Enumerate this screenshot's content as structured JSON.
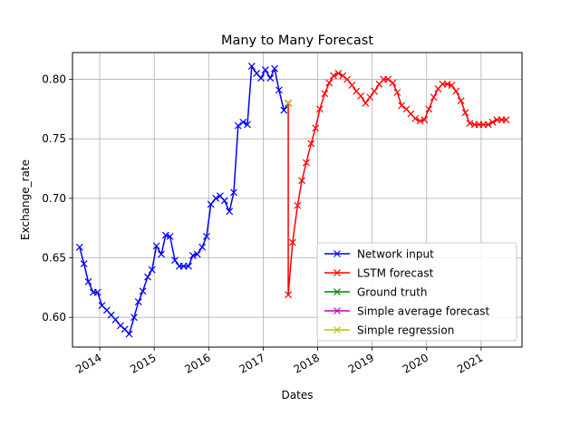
{
  "chart_data": {
    "type": "line",
    "title": "Many to Many Forecast",
    "xlabel": "Dates",
    "ylabel": "Exchange_rate",
    "xlim": [
      2013.5,
      2021.75
    ],
    "ylim": [
      0.575,
      0.8225
    ],
    "x_ticks": [
      {
        "value": 2014,
        "label": "2014"
      },
      {
        "value": 2015,
        "label": "2015"
      },
      {
        "value": 2016,
        "label": "2016"
      },
      {
        "value": 2017,
        "label": "2017"
      },
      {
        "value": 2018,
        "label": "2018"
      },
      {
        "value": 2019,
        "label": "2019"
      },
      {
        "value": 2020,
        "label": "2020"
      },
      {
        "value": 2021,
        "label": "2021"
      }
    ],
    "y_ticks": [
      {
        "value": 0.6,
        "label": "0.60"
      },
      {
        "value": 0.65,
        "label": "0.65"
      },
      {
        "value": 0.7,
        "label": "0.70"
      },
      {
        "value": 0.75,
        "label": "0.75"
      },
      {
        "value": 0.8,
        "label": "0.80"
      }
    ],
    "grid": true,
    "legend_position": "lower-right",
    "series": [
      {
        "name": "Network input",
        "color": "#0000ff",
        "marker": "x",
        "x": [
          2013.63,
          2013.71,
          2013.79,
          2013.88,
          2013.96,
          2014.04,
          2014.13,
          2014.21,
          2014.29,
          2014.38,
          2014.46,
          2014.54,
          2014.63,
          2014.71,
          2014.79,
          2014.88,
          2014.96,
          2015.04,
          2015.13,
          2015.21,
          2015.29,
          2015.38,
          2015.46,
          2015.54,
          2015.63,
          2015.71,
          2015.79,
          2015.88,
          2015.96,
          2016.04,
          2016.13,
          2016.21,
          2016.29,
          2016.38,
          2016.46,
          2016.54,
          2016.63,
          2016.71,
          2016.79,
          2016.88,
          2016.96,
          2017.04,
          2017.13,
          2017.21,
          2017.29,
          2017.38,
          2017.46
        ],
        "y": [
          0.659,
          0.645,
          0.63,
          0.621,
          0.621,
          0.61,
          0.606,
          0.602,
          0.598,
          0.593,
          0.59,
          0.586,
          0.6,
          0.613,
          0.622,
          0.634,
          0.64,
          0.66,
          0.653,
          0.669,
          0.668,
          0.648,
          0.643,
          0.643,
          0.643,
          0.652,
          0.653,
          0.659,
          0.668,
          0.695,
          0.7,
          0.702,
          0.698,
          0.689,
          0.705,
          0.761,
          0.764,
          0.762,
          0.811,
          0.805,
          0.801,
          0.808,
          0.801,
          0.809,
          0.791,
          0.774,
          0.78
        ]
      },
      {
        "name": "LSTM forecast",
        "color": "#ff0000",
        "marker": "x",
        "x": [
          2017.46,
          2017.46,
          2017.54,
          2017.63,
          2017.71,
          2017.79,
          2017.88,
          2017.96,
          2018.04,
          2018.13,
          2018.21,
          2018.29,
          2018.38,
          2018.46,
          2018.54,
          2018.63,
          2018.71,
          2018.79,
          2018.88,
          2018.96,
          2019.04,
          2019.13,
          2019.21,
          2019.29,
          2019.38,
          2019.46,
          2019.54,
          2019.63,
          2019.71,
          2019.79,
          2019.88,
          2019.96,
          2020.04,
          2020.13,
          2020.21,
          2020.29,
          2020.38,
          2020.46,
          2020.54,
          2020.63,
          2020.71,
          2020.79,
          2020.88,
          2020.96,
          2021.04,
          2021.13,
          2021.21,
          2021.29,
          2021.38,
          2021.46
        ],
        "y": [
          0.78,
          0.619,
          0.663,
          0.694,
          0.715,
          0.73,
          0.746,
          0.759,
          0.775,
          0.788,
          0.797,
          0.803,
          0.805,
          0.803,
          0.8,
          0.795,
          0.79,
          0.786,
          0.78,
          0.785,
          0.79,
          0.796,
          0.8,
          0.8,
          0.797,
          0.789,
          0.778,
          0.775,
          0.771,
          0.767,
          0.765,
          0.766,
          0.775,
          0.785,
          0.792,
          0.796,
          0.796,
          0.795,
          0.79,
          0.782,
          0.772,
          0.763,
          0.762,
          0.762,
          0.762,
          0.762,
          0.764,
          0.766,
          0.766,
          0.766
        ]
      },
      {
        "name": "Ground truth",
        "color": "#008000",
        "marker": "x",
        "x": [
          2017.46
        ],
        "y": [
          0.78
        ]
      },
      {
        "name": "Simple average forecast",
        "color": "#bf00bf",
        "marker": "x",
        "x": [
          2017.46
        ],
        "y": [
          0.78
        ]
      },
      {
        "name": "Simple regression",
        "color": "#bfbf00",
        "marker": "x",
        "x": [
          2017.46
        ],
        "y": [
          0.78
        ]
      }
    ]
  }
}
